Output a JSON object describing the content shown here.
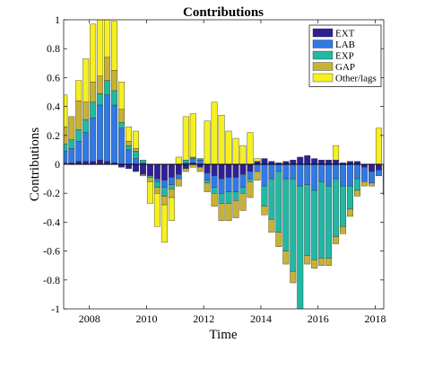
{
  "chart_data": {
    "type": "bar",
    "stacked": true,
    "title": "Contributions",
    "xlabel": "Time",
    "ylabel": "Contributions",
    "ylim": [
      -1,
      1
    ],
    "xlim": [
      2007.1,
      2018.3
    ],
    "yticks": [
      -1,
      -0.8,
      -0.6,
      -0.4,
      -0.2,
      0,
      0.2,
      0.4,
      0.6,
      0.8,
      1
    ],
    "ytick_labels": [
      "-1",
      "-0.8",
      "-0.6",
      "-0.4",
      "-0.2",
      "0",
      "0.2",
      "0.4",
      "0.6",
      "0.8",
      "1"
    ],
    "xticks": [
      2008,
      2010,
      2012,
      2014,
      2016,
      2018
    ],
    "xtick_labels": [
      "2008",
      "2010",
      "2012",
      "2014",
      "2016",
      "2018"
    ],
    "legend_position": "top-right",
    "x": [
      2007.125,
      2007.375,
      2007.625,
      2007.875,
      2008.125,
      2008.375,
      2008.625,
      2008.875,
      2009.125,
      2009.375,
      2009.625,
      2009.875,
      2010.125,
      2010.375,
      2010.625,
      2010.875,
      2011.125,
      2011.375,
      2011.625,
      2011.875,
      2012.125,
      2012.375,
      2012.625,
      2012.875,
      2013.125,
      2013.375,
      2013.625,
      2013.875,
      2014.125,
      2014.375,
      2014.625,
      2014.875,
      2015.125,
      2015.375,
      2015.625,
      2015.875,
      2016.125,
      2016.375,
      2016.625,
      2016.875,
      2017.125,
      2017.375,
      2017.625,
      2017.875,
      2018.125,
      2018.375
    ],
    "series": [
      {
        "name": "EXT",
        "color": "#2f1f97",
        "values": [
          0.01,
          0.01,
          0.02,
          0.02,
          0.02,
          0.03,
          0.02,
          0.01,
          -0.02,
          -0.03,
          -0.05,
          -0.07,
          -0.08,
          -0.1,
          -0.11,
          -0.09,
          -0.07,
          -0.03,
          0.01,
          -0.02,
          -0.06,
          -0.08,
          -0.1,
          -0.09,
          -0.09,
          -0.07,
          -0.05,
          0.02,
          0.04,
          0.02,
          0.01,
          0.02,
          0.03,
          0.05,
          0.06,
          0.04,
          0.03,
          0.03,
          0.03,
          0.01,
          0.02,
          0.02,
          -0.02,
          -0.05,
          -0.04,
          -0.04
        ]
      },
      {
        "name": "LAB",
        "color": "#3079e6",
        "values": [
          0.08,
          0.1,
          0.14,
          0.2,
          0.3,
          0.38,
          0.46,
          0.4,
          0.25,
          0.1,
          0.04,
          0.01,
          0.0,
          -0.02,
          -0.05,
          -0.05,
          -0.03,
          0.01,
          0.03,
          0.03,
          -0.05,
          -0.08,
          -0.1,
          -0.1,
          -0.1,
          -0.09,
          -0.05,
          -0.05,
          -0.15,
          -0.1,
          -0.05,
          -0.1,
          -0.1,
          -0.15,
          -0.14,
          -0.18,
          -0.12,
          -0.15,
          -0.1,
          -0.15,
          -0.15,
          -0.1,
          -0.1,
          -0.08,
          -0.04,
          -0.1
        ]
      },
      {
        "name": "EXP",
        "color": "#21b8a4",
        "values": [
          0.05,
          0.06,
          0.08,
          0.09,
          0.11,
          0.08,
          0.1,
          0.1,
          0.04,
          0.03,
          0.05,
          0.02,
          -0.01,
          -0.04,
          -0.06,
          -0.03,
          0.0,
          0.02,
          0.01,
          0.01,
          -0.02,
          -0.04,
          -0.07,
          -0.08,
          -0.06,
          -0.04,
          -0.02,
          0.0,
          -0.14,
          -0.28,
          -0.42,
          -0.5,
          -0.64,
          -0.85,
          -0.49,
          -0.48,
          -0.53,
          -0.5,
          -0.4,
          -0.28,
          -0.16,
          -0.08,
          0.0,
          0.0,
          0.0,
          -0.07
        ]
      },
      {
        "name": "GAP",
        "color": "#c8b234",
        "values": [
          0.12,
          0.16,
          0.2,
          0.12,
          0.14,
          0.12,
          0.16,
          0.14,
          0.09,
          0.03,
          0.02,
          -0.01,
          -0.03,
          -0.04,
          -0.06,
          -0.06,
          -0.05,
          -0.02,
          -0.02,
          -0.03,
          -0.06,
          -0.09,
          -0.12,
          -0.12,
          -0.12,
          -0.12,
          -0.11,
          -0.06,
          -0.06,
          -0.09,
          -0.1,
          -0.09,
          -0.08,
          -0.09,
          -0.06,
          -0.06,
          -0.05,
          -0.05,
          -0.05,
          -0.05,
          -0.05,
          -0.04,
          -0.03,
          -0.02,
          0.0,
          0.0
        ]
      },
      {
        "name": "Other/lags",
        "color": "#f6f020",
        "values": [
          0.22,
          0.0,
          0.14,
          0.3,
          0.4,
          0.39,
          0.26,
          0.34,
          0.19,
          0.1,
          0.12,
          0.0,
          -0.15,
          -0.23,
          -0.26,
          -0.16,
          0.05,
          0.3,
          0.3,
          0.0,
          0.3,
          0.43,
          0.34,
          0.23,
          0.18,
          0.13,
          0.22,
          0.02,
          0.0,
          0.0,
          0.0,
          0.0,
          0.0,
          0.0,
          0.0,
          0.0,
          0.0,
          0.0,
          0.1,
          0.0,
          0.0,
          0.0,
          0.0,
          0.0,
          0.25,
          0.0
        ]
      }
    ]
  }
}
